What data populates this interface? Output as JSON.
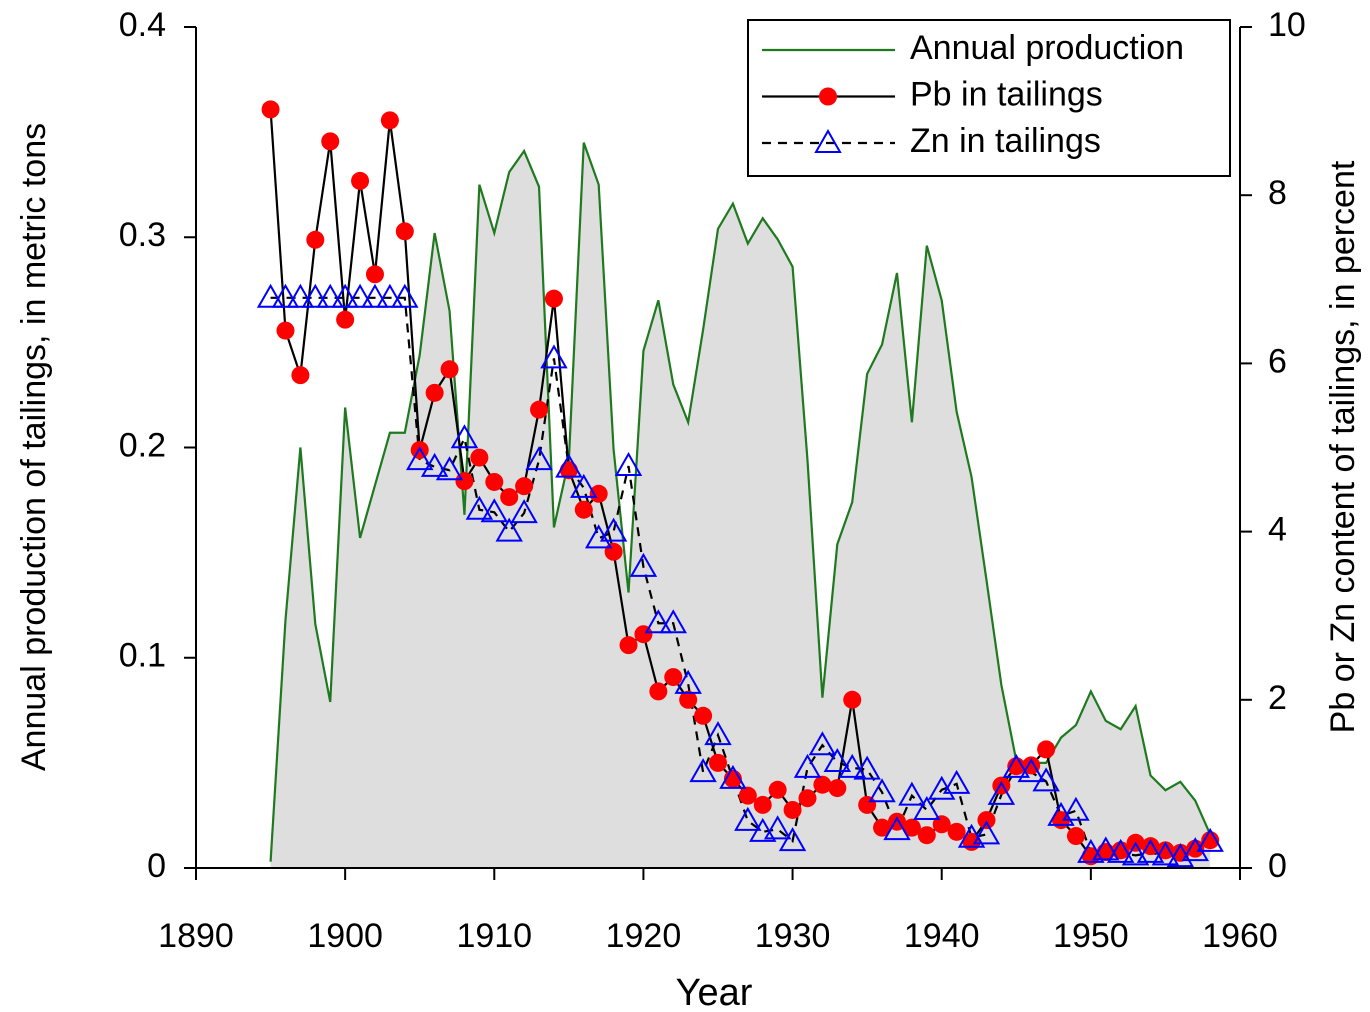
{
  "chart_data": {
    "type": "line",
    "xlabel": "Year",
    "ylabel": "Annual production of tailings, in metric tons",
    "y2label": "Pb or Zn content of tailings, in percent",
    "xlim": [
      1890,
      1960
    ],
    "xticks": [
      1890,
      1900,
      1910,
      1920,
      1930,
      1940,
      1950,
      1960
    ],
    "ylim": [
      0,
      0.4
    ],
    "yticks": [
      0,
      0.1,
      0.2,
      0.3,
      0.4
    ],
    "y2lim": [
      0,
      10
    ],
    "y2ticks": [
      0,
      2,
      4,
      6,
      8,
      10
    ],
    "legend": "upper right",
    "x": [
      1895,
      1896,
      1897,
      1898,
      1899,
      1900,
      1901,
      1902,
      1903,
      1904,
      1905,
      1906,
      1907,
      1908,
      1909,
      1910,
      1911,
      1912,
      1913,
      1914,
      1915,
      1916,
      1917,
      1918,
      1919,
      1920,
      1921,
      1922,
      1923,
      1924,
      1925,
      1926,
      1927,
      1928,
      1929,
      1930,
      1931,
      1932,
      1933,
      1934,
      1935,
      1936,
      1937,
      1938,
      1939,
      1940,
      1941,
      1942,
      1943,
      1944,
      1945,
      1946,
      1947,
      1948,
      1949,
      1950,
      1951,
      1952,
      1953,
      1954,
      1955,
      1956,
      1957,
      1958
    ],
    "series": [
      {
        "name": "Annual production",
        "color": "#1f7a1f",
        "fill_color": "#dedede",
        "axis": "y",
        "values": [
          0.003,
          0.118,
          0.2,
          0.116,
          0.079,
          0.219,
          0.157,
          0.182,
          0.207,
          0.207,
          0.244,
          0.302,
          0.265,
          0.168,
          0.325,
          0.302,
          0.331,
          0.341,
          0.324,
          0.162,
          0.194,
          0.345,
          0.325,
          0.199,
          0.131,
          0.246,
          0.27,
          0.23,
          0.212,
          0.256,
          0.304,
          0.316,
          0.297,
          0.309,
          0.299,
          0.286,
          0.194,
          0.081,
          0.154,
          0.174,
          0.235,
          0.249,
          0.283,
          0.212,
          0.296,
          0.27,
          0.217,
          0.186,
          0.137,
          0.087,
          0.051,
          0.05,
          0.05,
          0.062,
          0.068,
          0.084,
          0.07,
          0.066,
          0.077,
          0.044,
          0.037,
          0.041,
          0.032,
          0.016
        ]
      },
      {
        "name": "Pb in tailings",
        "color": "#000000",
        "marker": "circle",
        "marker_color": "#ff0000",
        "axis": "y2",
        "values": [
          9.02,
          6.39,
          5.86,
          7.47,
          8.64,
          6.52,
          8.17,
          7.06,
          8.89,
          7.57,
          4.97,
          5.65,
          5.93,
          4.6,
          4.88,
          4.59,
          4.41,
          4.54,
          5.45,
          6.77,
          4.73,
          4.26,
          4.45,
          3.76,
          2.65,
          2.78,
          2.1,
          2.27,
          2.0,
          1.81,
          1.25,
          1.06,
          0.86,
          0.75,
          0.93,
          0.69,
          0.83,
          0.99,
          0.95,
          2.0,
          0.75,
          0.48,
          0.55,
          0.48,
          0.39,
          0.52,
          0.43,
          0.31,
          0.57,
          0.98,
          1.21,
          1.22,
          1.41,
          0.57,
          0.38,
          0.14,
          0.19,
          0.21,
          0.3,
          0.26,
          0.21,
          0.18,
          0.23,
          0.33
        ]
      },
      {
        "name": "Zn in tailings",
        "color": "#000000",
        "dashed": true,
        "marker": "triangle",
        "marker_color": "#0000ff",
        "axis": "y2",
        "values": [
          6.78,
          6.78,
          6.78,
          6.78,
          6.78,
          6.78,
          6.78,
          6.78,
          6.78,
          6.78,
          4.85,
          4.77,
          4.73,
          5.11,
          4.26,
          4.23,
          4.0,
          4.22,
          4.85,
          6.06,
          4.76,
          4.52,
          3.92,
          4.0,
          4.78,
          3.58,
          2.91,
          2.91,
          2.19,
          1.14,
          1.58,
          1.06,
          0.56,
          0.43,
          0.46,
          0.32,
          1.19,
          1.46,
          1.26,
          1.19,
          1.17,
          0.9,
          0.45,
          0.86,
          0.69,
          0.93,
          1.0,
          0.36,
          0.4,
          0.87,
          1.19,
          1.14,
          1.03,
          0.62,
          0.68,
          0.18,
          0.21,
          0.18,
          0.15,
          0.18,
          0.15,
          0.13,
          0.2,
          0.31
        ]
      }
    ]
  }
}
